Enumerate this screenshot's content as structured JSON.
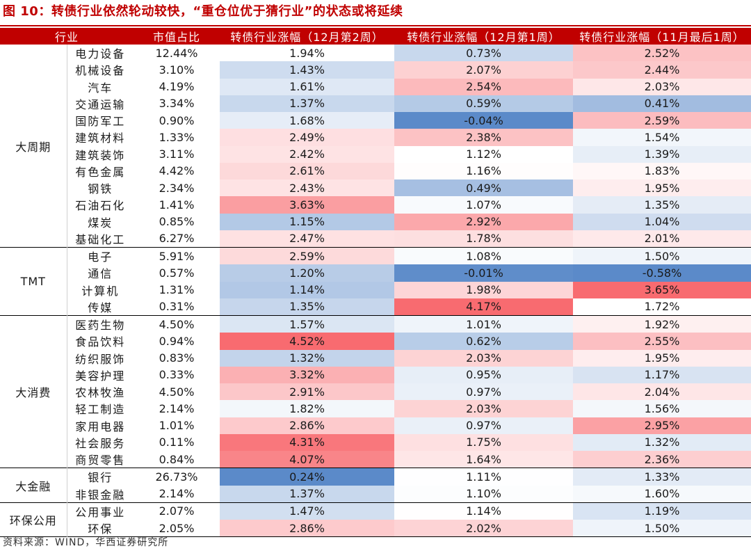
{
  "title": "图 10：转债行业依然轮动较快，“重仓位优于猜行业”的状态或将延续",
  "source": "资料来源：WIND，华西证券研究所",
  "colors": {
    "header_bg": "#c00000",
    "positive_scale_max": "#f86b70",
    "negative_scale_max": "#5b8ac9",
    "neutral": "#ffffff"
  },
  "chart_data": {
    "type": "table",
    "columns": [
      "行业",
      "市值占比",
      "转债行业涨幅（12月第2周）",
      "转债行业涨幅（12月第1周）",
      "转债行业涨幅（11月最后1周）"
    ],
    "groups": [
      {
        "name": "大周期",
        "rows": [
          {
            "industry": "电力设备",
            "share": "12.44%",
            "w1": "1.94%",
            "w2": "0.73%",
            "w3": "2.52%"
          },
          {
            "industry": "机械设备",
            "share": "3.10%",
            "w1": "1.43%",
            "w2": "2.07%",
            "w3": "2.44%"
          },
          {
            "industry": "汽车",
            "share": "4.19%",
            "w1": "1.61%",
            "w2": "2.54%",
            "w3": "2.03%"
          },
          {
            "industry": "交通运输",
            "share": "3.34%",
            "w1": "1.37%",
            "w2": "0.59%",
            "w3": "0.41%"
          },
          {
            "industry": "国防军工",
            "share": "0.90%",
            "w1": "1.68%",
            "w2": "-0.04%",
            "w3": "2.59%"
          },
          {
            "industry": "建筑材料",
            "share": "1.33%",
            "w1": "2.49%",
            "w2": "2.38%",
            "w3": "1.54%"
          },
          {
            "industry": "建筑装饰",
            "share": "3.11%",
            "w1": "2.42%",
            "w2": "1.12%",
            "w3": "1.39%"
          },
          {
            "industry": "有色金属",
            "share": "4.42%",
            "w1": "2.61%",
            "w2": "1.16%",
            "w3": "1.83%"
          },
          {
            "industry": "钢铁",
            "share": "2.34%",
            "w1": "2.43%",
            "w2": "0.49%",
            "w3": "1.95%"
          },
          {
            "industry": "石油石化",
            "share": "1.41%",
            "w1": "3.63%",
            "w2": "1.07%",
            "w3": "1.35%"
          },
          {
            "industry": "煤炭",
            "share": "0.85%",
            "w1": "1.15%",
            "w2": "2.92%",
            "w3": "1.04%"
          },
          {
            "industry": "基础化工",
            "share": "6.27%",
            "w1": "2.47%",
            "w2": "1.78%",
            "w3": "2.01%"
          }
        ]
      },
      {
        "name": "TMT",
        "rows": [
          {
            "industry": "电子",
            "share": "5.91%",
            "w1": "2.59%",
            "w2": "1.08%",
            "w3": "1.50%"
          },
          {
            "industry": "通信",
            "share": "0.57%",
            "w1": "1.20%",
            "w2": "-0.01%",
            "w3": "-0.58%"
          },
          {
            "industry": "计算机",
            "share": "1.31%",
            "w1": "1.14%",
            "w2": "1.98%",
            "w3": "3.65%"
          },
          {
            "industry": "传媒",
            "share": "0.31%",
            "w1": "1.35%",
            "w2": "4.17%",
            "w3": "1.72%"
          }
        ]
      },
      {
        "name": "大消费",
        "rows": [
          {
            "industry": "医药生物",
            "share": "4.50%",
            "w1": "1.57%",
            "w2": "1.01%",
            "w3": "1.92%"
          },
          {
            "industry": "食品饮料",
            "share": "0.94%",
            "w1": "4.52%",
            "w2": "0.62%",
            "w3": "2.55%"
          },
          {
            "industry": "纺织服饰",
            "share": "0.83%",
            "w1": "1.32%",
            "w2": "2.03%",
            "w3": "1.95%"
          },
          {
            "industry": "美容护理",
            "share": "0.33%",
            "w1": "3.32%",
            "w2": "0.95%",
            "w3": "1.17%"
          },
          {
            "industry": "农林牧渔",
            "share": "4.50%",
            "w1": "2.91%",
            "w2": "0.97%",
            "w3": "2.04%"
          },
          {
            "industry": "轻工制造",
            "share": "2.14%",
            "w1": "1.82%",
            "w2": "2.03%",
            "w3": "1.56%"
          },
          {
            "industry": "家用电器",
            "share": "1.01%",
            "w1": "2.86%",
            "w2": "0.97%",
            "w3": "2.95%"
          },
          {
            "industry": "社会服务",
            "share": "0.11%",
            "w1": "4.31%",
            "w2": "1.75%",
            "w3": "1.32%"
          },
          {
            "industry": "商贸零售",
            "share": "0.84%",
            "w1": "4.07%",
            "w2": "1.64%",
            "w3": "2.36%"
          }
        ]
      },
      {
        "name": "大金融",
        "rows": [
          {
            "industry": "银行",
            "share": "26.73%",
            "w1": "0.24%",
            "w2": "1.11%",
            "w3": "1.33%"
          },
          {
            "industry": "非银金融",
            "share": "2.14%",
            "w1": "1.37%",
            "w2": "1.10%",
            "w3": "1.60%"
          }
        ]
      },
      {
        "name": "环保公用",
        "rows": [
          {
            "industry": "公用事业",
            "share": "2.07%",
            "w1": "1.47%",
            "w2": "1.14%",
            "w3": "1.19%"
          },
          {
            "industry": "环保",
            "share": "2.05%",
            "w1": "2.86%",
            "w2": "2.02%",
            "w3": "1.50%"
          }
        ]
      }
    ]
  }
}
